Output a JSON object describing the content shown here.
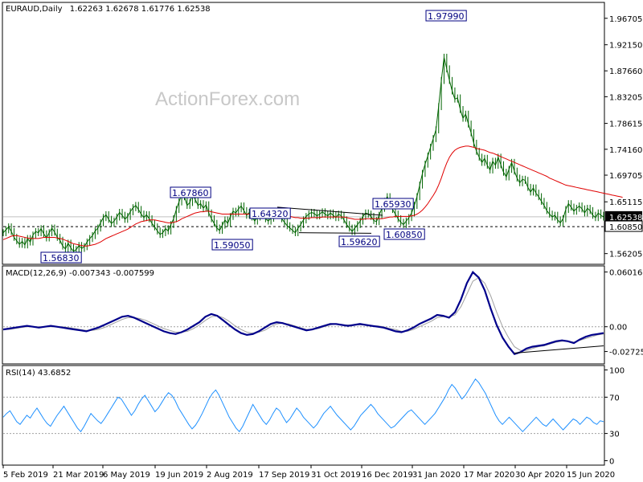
{
  "header": {
    "symbol": "EURAUD,Daily",
    "ohlc": "1.62263 1.62678 1.61776 1.62538"
  },
  "watermark": "ActionForex.com",
  "colors": {
    "price_line": "#006400",
    "ma_line": "#e00000",
    "macd_line": "#00008b",
    "macd_signal": "#a0a0a0",
    "rsi_line": "#1e90ff",
    "label_border": "#000080",
    "current_bg": "#ffffff"
  },
  "chart_data": [
    {
      "type": "line",
      "panel": "price",
      "y_ticks": [
        "1.96705",
        "1.92150",
        "1.87660",
        "1.83205",
        "1.78615",
        "1.74160",
        "1.69705",
        "1.65115",
        "1.60850",
        "1.56205"
      ],
      "ylim": [
        1.545,
        1.993
      ],
      "x_labels": [
        "5 Feb 2019",
        "21 Mar 2019",
        "6 May 2019",
        "19 Jun 2019",
        "2 Aug 2019",
        "17 Sep 2019",
        "31 Oct 2019",
        "16 Dec 2019",
        "31 Jan 2020",
        "17 Mar 2020",
        "30 Apr 2020",
        "15 Jun 2020"
      ],
      "current_price": "1.62538",
      "support_level": "1.60850",
      "annotations": [
        "1.97990",
        "1.67860",
        "1.65930",
        "1.64320",
        "1.59050",
        "1.60850",
        "1.59620",
        "1.56830"
      ],
      "series": [
        {
          "name": "",
          "values": [
            1.598,
            1.603,
            1.608,
            1.6,
            1.59,
            1.584,
            1.578,
            1.583,
            1.577,
            1.588,
            1.582,
            1.594,
            1.6,
            1.598,
            1.605,
            1.596,
            1.589,
            1.598,
            1.606,
            1.599,
            1.59,
            1.585,
            1.575,
            1.57,
            1.58,
            1.572,
            1.566,
            1.569,
            1.576,
            1.571,
            1.574,
            1.582,
            1.588,
            1.593,
            1.601,
            1.606,
            1.615,
            1.624,
            1.629,
            1.621,
            1.614,
            1.618,
            1.625,
            1.633,
            1.628,
            1.621,
            1.626,
            1.634,
            1.641,
            1.645,
            1.638,
            1.63,
            1.624,
            1.629,
            1.622,
            1.614,
            1.608,
            1.601,
            1.595,
            1.598,
            1.605,
            1.601,
            1.612,
            1.622,
            1.638,
            1.651,
            1.664,
            1.66,
            1.645,
            1.65,
            1.665,
            1.655,
            1.645,
            1.648,
            1.64,
            1.646,
            1.632,
            1.622,
            1.614,
            1.606,
            1.602,
            1.611,
            1.62,
            1.614,
            1.626,
            1.635,
            1.632,
            1.639,
            1.644,
            1.636,
            1.628,
            1.633,
            1.625,
            1.618,
            1.625,
            1.632,
            1.628,
            1.622,
            1.618,
            1.623,
            1.63,
            1.633,
            1.628,
            1.622,
            1.616,
            1.61,
            1.606,
            1.602,
            1.598,
            1.606,
            1.612,
            1.62,
            1.626,
            1.63,
            1.633,
            1.631,
            1.627,
            1.63,
            1.634,
            1.63,
            1.627,
            1.632,
            1.628,
            1.624,
            1.63,
            1.627,
            1.62,
            1.612,
            1.606,
            1.6,
            1.606,
            1.612,
            1.618,
            1.626,
            1.632,
            1.63,
            1.626,
            1.619,
            1.617,
            1.628,
            1.64,
            1.652,
            1.66,
            1.65,
            1.638,
            1.63,
            1.622,
            1.616,
            1.612,
            1.618,
            1.624,
            1.632,
            1.645,
            1.66,
            1.68,
            1.7,
            1.716,
            1.73,
            1.745,
            1.76,
            1.775,
            1.815,
            1.86,
            1.9,
            1.88,
            1.86,
            1.842,
            1.828,
            1.83,
            1.81,
            1.795,
            1.802,
            1.785,
            1.77,
            1.752,
            1.738,
            1.728,
            1.719,
            1.726,
            1.714,
            1.706,
            1.721,
            1.714,
            1.728,
            1.715,
            1.702,
            1.694,
            1.707,
            1.719,
            1.704,
            1.692,
            1.684,
            1.69,
            1.688,
            1.676,
            1.668,
            1.675,
            1.666,
            1.66,
            1.652,
            1.645,
            1.636,
            1.63,
            1.625,
            1.628,
            1.62,
            1.615,
            1.622,
            1.638,
            1.648,
            1.642,
            1.635,
            1.64,
            1.644,
            1.639,
            1.632,
            1.64,
            1.636,
            1.628,
            1.624,
            1.632,
            1.628,
            1.625
          ]
        },
        {
          "name": "",
          "values": [
            1.586,
            1.588,
            1.59,
            1.592,
            1.593,
            1.593,
            1.592,
            1.591,
            1.59,
            1.589,
            1.588,
            1.588,
            1.588,
            1.588,
            1.589,
            1.59,
            1.59,
            1.59,
            1.59,
            1.59,
            1.589,
            1.588,
            1.587,
            1.585,
            1.583,
            1.581,
            1.579,
            1.578,
            1.577,
            1.576,
            1.575,
            1.575,
            1.576,
            1.577,
            1.578,
            1.58,
            1.582,
            1.585,
            1.588,
            1.59,
            1.592,
            1.594,
            1.596,
            1.598,
            1.6,
            1.602,
            1.604,
            1.607,
            1.61,
            1.613,
            1.615,
            1.617,
            1.618,
            1.619,
            1.62,
            1.62,
            1.62,
            1.619,
            1.618,
            1.617,
            1.616,
            1.615,
            1.615,
            1.616,
            1.617,
            1.619,
            1.622,
            1.624,
            1.626,
            1.628,
            1.63,
            1.632,
            1.633,
            1.634,
            1.634,
            1.635,
            1.635,
            1.634,
            1.633,
            1.632,
            1.631,
            1.63,
            1.63,
            1.63,
            1.63,
            1.63,
            1.63,
            1.63,
            1.63,
            1.63,
            1.63,
            1.63,
            1.63,
            1.629,
            1.629,
            1.629,
            1.629,
            1.628,
            1.628,
            1.628,
            1.628,
            1.628,
            1.628,
            1.628,
            1.627,
            1.627,
            1.626,
            1.625,
            1.624,
            1.624,
            1.623,
            1.623,
            1.623,
            1.623,
            1.624,
            1.624,
            1.624,
            1.624,
            1.625,
            1.625,
            1.625,
            1.625,
            1.625,
            1.625,
            1.625,
            1.625,
            1.625,
            1.624,
            1.623,
            1.622,
            1.621,
            1.621,
            1.621,
            1.621,
            1.622,
            1.622,
            1.622,
            1.622,
            1.622,
            1.622,
            1.622,
            1.623,
            1.624,
            1.625,
            1.625,
            1.626,
            1.626,
            1.626,
            1.626,
            1.626,
            1.626,
            1.627,
            1.628,
            1.63,
            1.633,
            1.637,
            1.642,
            1.648,
            1.655,
            1.662,
            1.67,
            1.68,
            1.692,
            1.706,
            1.718,
            1.728,
            1.735,
            1.74,
            1.743,
            1.745,
            1.746,
            1.747,
            1.747,
            1.746,
            1.745,
            1.743,
            1.742,
            1.741,
            1.74,
            1.738,
            1.736,
            1.735,
            1.733,
            1.731,
            1.729,
            1.727,
            1.725,
            1.723,
            1.721,
            1.719,
            1.717,
            1.715,
            1.713,
            1.711,
            1.709,
            1.707,
            1.705,
            1.703,
            1.701,
            1.699,
            1.697,
            1.695,
            1.692,
            1.69,
            1.688,
            1.686,
            1.684,
            1.682,
            1.68,
            1.679,
            1.678,
            1.677,
            1.676,
            1.675,
            1.674,
            1.673,
            1.672,
            1.671,
            1.67,
            1.669,
            1.668,
            1.667,
            1.666,
            1.665,
            1.664,
            1.663,
            1.662,
            1.661,
            1.66,
            1.659
          ]
        }
      ]
    },
    {
      "type": "line",
      "panel": "macd",
      "title": "MACD(12,26,9) -0.007343 -0.007599",
      "y_ticks": [
        "0.060165",
        "0.00",
        "-0.02725"
      ],
      "ylim": [
        -0.04,
        0.066
      ],
      "series": [
        {
          "name": "",
          "values": [
            -0.003,
            -0.002,
            -0.001,
            0.0,
            0.001,
            0.0,
            -0.001,
            0.0,
            0.001,
            0.0,
            -0.001,
            -0.002,
            -0.003,
            -0.004,
            -0.005,
            -0.003,
            -0.001,
            0.002,
            0.005,
            0.008,
            0.011,
            0.012,
            0.01,
            0.007,
            0.004,
            0.001,
            -0.002,
            -0.005,
            -0.007,
            -0.008,
            -0.006,
            -0.003,
            0.001,
            0.005,
            0.011,
            0.014,
            0.012,
            0.007,
            0.002,
            -0.003,
            -0.007,
            -0.009,
            -0.008,
            -0.005,
            -0.001,
            0.003,
            0.005,
            0.004,
            0.002,
            0.0,
            -0.002,
            -0.004,
            -0.003,
            -0.001,
            0.001,
            0.003,
            0.003,
            0.002,
            0.001,
            0.002,
            0.003,
            0.002,
            0.001,
            0.0,
            -0.001,
            -0.003,
            -0.005,
            -0.006,
            -0.004,
            -0.001,
            0.003,
            0.006,
            0.009,
            0.013,
            0.012,
            0.01,
            0.016,
            0.03,
            0.048,
            0.06,
            0.054,
            0.04,
            0.02,
            0.002,
            -0.012,
            -0.022,
            -0.03,
            -0.028,
            -0.024,
            -0.022,
            -0.021,
            -0.02,
            -0.018,
            -0.016,
            -0.015,
            -0.016,
            -0.018,
            -0.014,
            -0.011,
            -0.009,
            -0.008,
            -0.007
          ]
        },
        {
          "name": "",
          "values": [
            -0.003,
            -0.003,
            -0.002,
            -0.001,
            0.0,
            0.0,
            0.0,
            0.0,
            0.0,
            0.0,
            0.0,
            -0.001,
            -0.002,
            -0.003,
            -0.004,
            -0.004,
            -0.003,
            -0.001,
            0.002,
            0.005,
            0.008,
            0.01,
            0.01,
            0.009,
            0.007,
            0.004,
            0.001,
            -0.002,
            -0.004,
            -0.006,
            -0.006,
            -0.005,
            -0.002,
            0.002,
            0.007,
            0.011,
            0.012,
            0.01,
            0.006,
            0.001,
            -0.003,
            -0.006,
            -0.007,
            -0.006,
            -0.004,
            0.0,
            0.003,
            0.004,
            0.003,
            0.001,
            -0.001,
            -0.003,
            -0.003,
            -0.002,
            0.0,
            0.002,
            0.003,
            0.002,
            0.002,
            0.002,
            0.002,
            0.002,
            0.001,
            0.001,
            0.0,
            -0.002,
            -0.003,
            -0.005,
            -0.005,
            -0.003,
            0.0,
            0.003,
            0.006,
            0.01,
            0.011,
            0.011,
            0.013,
            0.022,
            0.036,
            0.05,
            0.054,
            0.048,
            0.034,
            0.016,
            0.0,
            -0.012,
            -0.022,
            -0.026,
            -0.026,
            -0.024,
            -0.022,
            -0.021,
            -0.019,
            -0.017,
            -0.016,
            -0.016,
            -0.017,
            -0.015,
            -0.013,
            -0.011,
            -0.009,
            -0.008
          ]
        }
      ]
    },
    {
      "type": "line",
      "panel": "rsi",
      "title": "RSI(14) 43.6852",
      "y_ticks": [
        "100",
        "70",
        "30",
        "0"
      ],
      "ylim": [
        -4,
        104
      ],
      "series": [
        {
          "name": "",
          "values": [
            48,
            52,
            55,
            49,
            43,
            40,
            45,
            50,
            47,
            53,
            58,
            52,
            46,
            41,
            38,
            44,
            50,
            55,
            60,
            54,
            48,
            42,
            36,
            32,
            38,
            45,
            52,
            48,
            44,
            41,
            46,
            52,
            58,
            64,
            70,
            68,
            62,
            56,
            50,
            55,
            62,
            68,
            72,
            66,
            60,
            54,
            58,
            64,
            70,
            75,
            72,
            66,
            58,
            52,
            46,
            40,
            35,
            39,
            45,
            52,
            60,
            68,
            74,
            78,
            72,
            64,
            56,
            48,
            42,
            36,
            32,
            38,
            46,
            54,
            62,
            56,
            50,
            44,
            40,
            45,
            52,
            58,
            55,
            48,
            42,
            46,
            52,
            58,
            54,
            48,
            44,
            40,
            36,
            40,
            46,
            52,
            56,
            60,
            55,
            50,
            46,
            42,
            38,
            34,
            38,
            44,
            50,
            54,
            58,
            62,
            58,
            52,
            48,
            44,
            40,
            36,
            38,
            42,
            46,
            50,
            54,
            56,
            52,
            48,
            44,
            40,
            44,
            48,
            52,
            58,
            64,
            70,
            78,
            84,
            80,
            74,
            68,
            72,
            78,
            84,
            90,
            86,
            80,
            74,
            66,
            58,
            50,
            44,
            40,
            44,
            48,
            44,
            40,
            36,
            32,
            36,
            40,
            44,
            48,
            44,
            40,
            38,
            42,
            46,
            42,
            38,
            34,
            38,
            42,
            46,
            44,
            40,
            44,
            48,
            46,
            42,
            40,
            44,
            43
          ]
        }
      ]
    }
  ]
}
